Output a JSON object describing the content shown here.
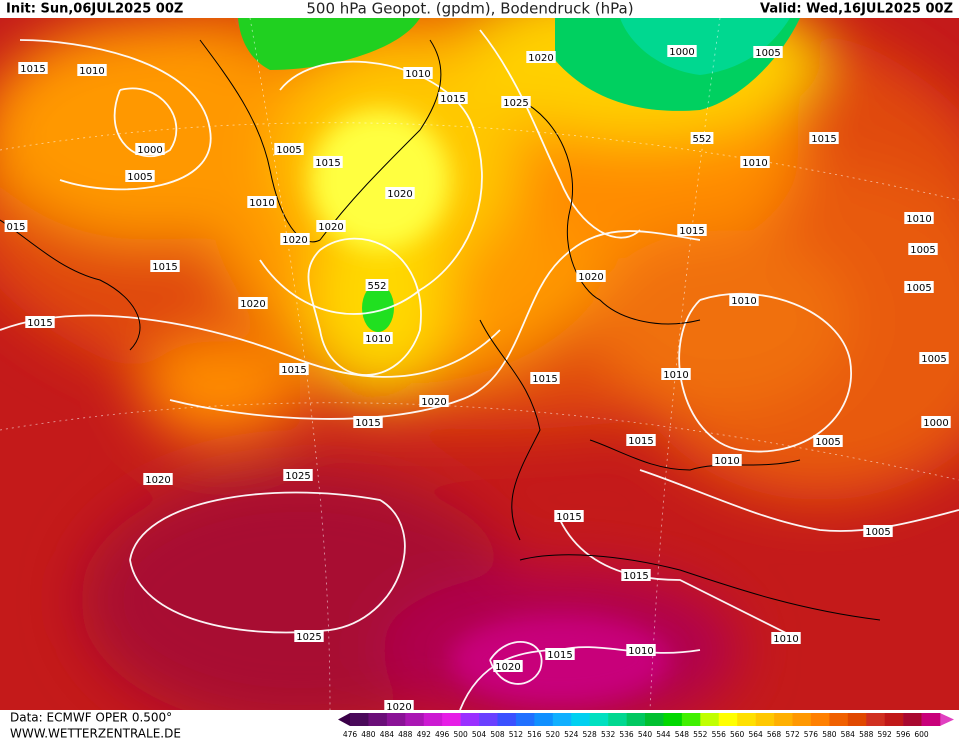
{
  "header": {
    "init": "Init: Sun,06JUL2025 00Z",
    "title": "500 hPa Geopot. (gpdm), Bodendruck (hPa)",
    "valid": "Valid: Wed,16JUL2025 00Z"
  },
  "map": {
    "isobar_labels": [
      "1015",
      "1010",
      "1000",
      "1005",
      "1010",
      "1005",
      "1015",
      "1010",
      "1015",
      "1020",
      "1025",
      "1000",
      "1005",
      "552",
      "1010",
      "1015",
      "1020",
      "1020",
      "1020",
      "015",
      "1015",
      "1020",
      "1015",
      "552",
      "1010",
      "1015",
      "1015",
      "1020",
      "1010",
      "1005",
      "1005",
      "1010",
      "1005",
      "1015",
      "1010",
      "1020",
      "1015",
      "1000",
      "1015",
      "1005",
      "1010",
      "1020",
      "1025",
      "1015",
      "1005",
      "1015",
      "1025",
      "1010",
      "1010",
      "1015",
      "1020",
      "1020"
    ]
  },
  "colorbar": {
    "labels": [
      476,
      480,
      484,
      488,
      492,
      496,
      500,
      504,
      508,
      512,
      516,
      520,
      524,
      528,
      532,
      536,
      540,
      544,
      548,
      552,
      556,
      560,
      564,
      568,
      572,
      576,
      580,
      584,
      588,
      592,
      596,
      600
    ],
    "colors": [
      "#4a0a5a",
      "#6a0e78",
      "#8a1296",
      "#aa16b4",
      "#cc1ad2",
      "#e61ee6",
      "#9a30ff",
      "#6a40ff",
      "#3a50ff",
      "#2070ff",
      "#1090ff",
      "#10b0ff",
      "#00d0f0",
      "#00e0c0",
      "#00d890",
      "#00c860",
      "#00c030",
      "#00d800",
      "#40f000",
      "#c0ff00",
      "#ffff00",
      "#ffe000",
      "#ffc800",
      "#ffb000",
      "#ff9800",
      "#ff8000",
      "#f06000",
      "#e04800",
      "#d03020",
      "#c01818",
      "#a80830",
      "#c8007a"
    ]
  },
  "footer": {
    "source": "Data: ECMWF OPER 0.500°",
    "site": "WWW.WETTERZENTRALE.DE"
  }
}
